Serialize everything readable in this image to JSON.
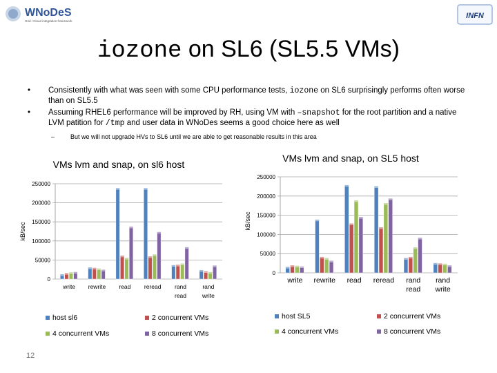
{
  "header": {
    "logo_left_name": "WNoDeS",
    "logo_left_tagline": "Grid / Cloud integration framework",
    "logo_right_name": "INFN"
  },
  "slide": {
    "title_mono": "iozone",
    "title_rest": " on SL6 (SL5.5 VMs)",
    "bullet1_pre": "Consistently with what was seen with some CPU performance tests, ",
    "bullet1_mono": "iozone",
    "bullet1_post": " on SL6 surprisingly performs often worse than on SL5.5",
    "bullet2_pre": "Assuming RHEL6 performance will be improved by RH, using VM with ",
    "bullet2_mono1": "–snapshot",
    "bullet2_mid": " for the root partition and a native LVM patition for ",
    "bullet2_mono2": "/tmp",
    "bullet2_post": " and user data in WNoDes seems a good choice here as well",
    "sub_dash": "–",
    "sub_text": "But we will not upgrade HVs to SL6 until we are able to get reasonable results in this area",
    "page_number": "12"
  },
  "colors": {
    "blue": "#4F81BD",
    "red": "#C0504D",
    "green": "#9BBB59",
    "purple": "#8064A2",
    "axis": "#a6a6a6"
  },
  "chart_data": [
    {
      "type": "bar",
      "title": "VMs lvm and snap, on sl6 host",
      "ylabel": "kB/sec",
      "ylim": [
        0,
        250000
      ],
      "yticks": [
        "0",
        "50000",
        "100000",
        "150000",
        "200000",
        "250000"
      ],
      "categories": [
        [
          "write"
        ],
        [
          "rewrite"
        ],
        [
          "read"
        ],
        [
          "reread"
        ],
        [
          "rand",
          "read"
        ],
        [
          "rand",
          "write"
        ]
      ],
      "series": [
        {
          "name": "host sl6",
          "values": [
            9000,
            27000,
            235000,
            235000,
            33000,
            20000
          ]
        },
        {
          "name": "2 concurrent VMs",
          "values": [
            12000,
            26000,
            58000,
            56000,
            34000,
            17000
          ]
        },
        {
          "name": "4 concurrent VMs",
          "values": [
            14000,
            24000,
            52000,
            61000,
            37000,
            15000
          ]
        },
        {
          "name": "8 concurrent VMs",
          "values": [
            15000,
            21000,
            134000,
            120000,
            80000,
            32000
          ]
        }
      ],
      "legend": "bottom",
      "grid": true
    },
    {
      "type": "bar",
      "title": "VMs lvm and snap, on SL5 host",
      "ylabel": "kB/sec",
      "ylim": [
        0,
        250000
      ],
      "yticks": [
        "0",
        "50000",
        "100000",
        "150000",
        "200000",
        "250000"
      ],
      "categories": [
        [
          "write"
        ],
        [
          "rewrite"
        ],
        [
          "read"
        ],
        [
          "reread"
        ],
        [
          "rand",
          "read"
        ],
        [
          "rand",
          "write"
        ]
      ],
      "series": [
        {
          "name": "host SL5",
          "values": [
            12000,
            135000,
            225000,
            222000,
            35000,
            22000
          ]
        },
        {
          "name": "2 concurrent VMs",
          "values": [
            16000,
            38000,
            125000,
            115000,
            38000,
            21000
          ]
        },
        {
          "name": "4 concurrent VMs",
          "values": [
            15000,
            35000,
            185000,
            178000,
            63000,
            20000
          ]
        },
        {
          "name": "8 concurrent VMs",
          "values": [
            13000,
            28000,
            142000,
            190000,
            88000,
            16000
          ]
        }
      ],
      "legend": "bottom",
      "grid": true
    }
  ]
}
